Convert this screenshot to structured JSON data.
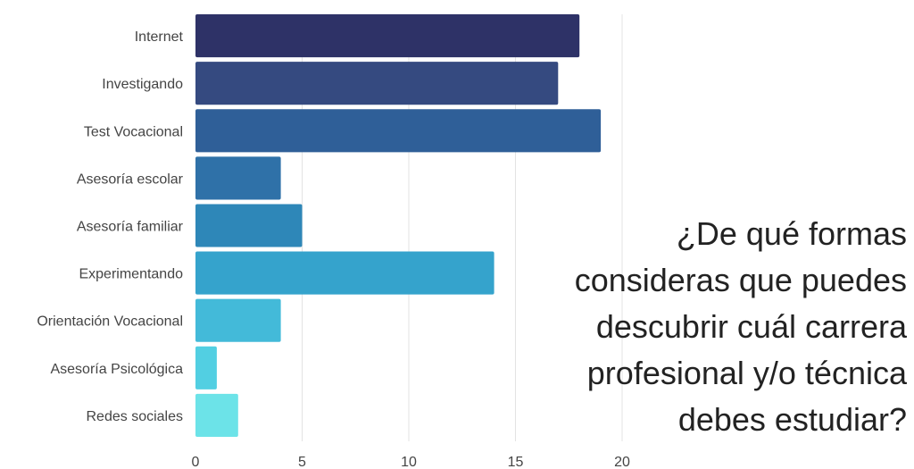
{
  "chart_data": {
    "type": "bar",
    "orientation": "horizontal",
    "categories": [
      "Internet",
      "Investigando",
      "Test Vocacional",
      "Asesoría escolar",
      "Asesoría familiar",
      "Experimentando",
      "Orientación Vocacional",
      "Asesoría Psicológica",
      "Redes sociales"
    ],
    "values": [
      18,
      17,
      19,
      4,
      5,
      14,
      4,
      1,
      2
    ],
    "colors": [
      "#2e3267",
      "#354a80",
      "#2f5f98",
      "#2f71a8",
      "#2e87b8",
      "#35a3cc",
      "#43bad9",
      "#52cfe2",
      "#6ce3e8"
    ],
    "xlim": [
      0,
      20
    ],
    "xticks": [
      "0",
      "5",
      "10",
      "15",
      "20"
    ],
    "grid": true,
    "title": ""
  },
  "question": {
    "lines": [
      "¿De qué formas",
      "consideras que puedes",
      "descubrir cuál carrera",
      "profesional y/o técnica",
      "debes estudiar?"
    ]
  }
}
